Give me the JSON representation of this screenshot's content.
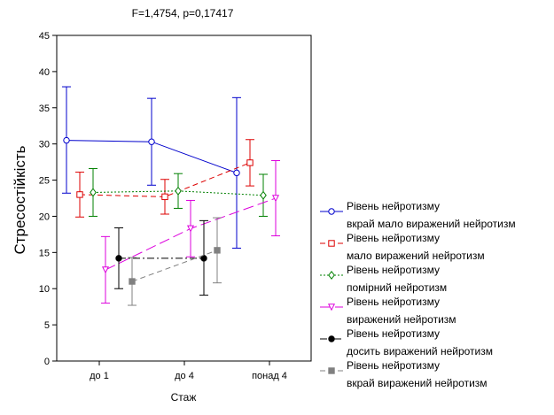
{
  "chart_data": {
    "type": "line",
    "title": "F=1,4754, p=0,17417",
    "xlabel": "Стаж",
    "ylabel": "Стресостійкість",
    "ylim": [
      0,
      45
    ],
    "yticks": [
      0,
      5,
      10,
      15,
      20,
      25,
      30,
      35,
      40,
      45
    ],
    "categories": [
      "до 1",
      "до 4",
      "понад 4"
    ],
    "grid": false,
    "legend_position": "right",
    "series": [
      {
        "name_line1": "Рівень нейротизму",
        "name_line2": "вкрай мало виражений нейротизм",
        "color": "#0000cc",
        "line_style": "solid",
        "marker": "circle-open",
        "values": [
          30.5,
          30.3,
          26.0
        ],
        "lower": [
          23.2,
          24.3,
          15.6
        ],
        "upper": [
          37.9,
          36.3,
          36.4
        ]
      },
      {
        "name_line1": "Рівень нейротизму",
        "name_line2": "мало виражений нейротизм",
        "color": "#dd0000",
        "line_style": "dashed",
        "marker": "square-open",
        "values": [
          23.0,
          22.7,
          27.4
        ],
        "lower": [
          19.9,
          20.3,
          24.2
        ],
        "upper": [
          26.1,
          25.1,
          30.6
        ]
      },
      {
        "name_line1": "Рівень нейротизму",
        "name_line2": "помірний нейротизм",
        "color": "#008000",
        "line_style": "dotted",
        "marker": "diamond-open",
        "values": [
          23.3,
          23.5,
          22.9
        ],
        "lower": [
          20.0,
          21.1,
          20.0
        ],
        "upper": [
          26.6,
          25.9,
          25.8
        ]
      },
      {
        "name_line1": "Рівень нейротизму",
        "name_line2": "виражений нейротизм",
        "color": "#dd00dd",
        "line_style": "longdash",
        "marker": "triangle-open",
        "values": [
          12.6,
          18.3,
          22.5
        ],
        "lower": [
          8.0,
          14.4,
          17.3
        ],
        "upper": [
          17.2,
          22.2,
          27.7
        ]
      },
      {
        "name_line1": "Рівень нейротизму",
        "name_line2": "досить виражений нейротизм",
        "color": "#000000",
        "line_style": "dashdot",
        "marker": "circle-filled",
        "values": [
          14.2,
          14.2,
          null
        ],
        "lower": [
          10.0,
          9.1,
          null
        ],
        "upper": [
          18.4,
          19.4,
          null
        ]
      },
      {
        "name_line1": "Рівень нейротизму",
        "name_line2": "вкрай виражений нейротизм",
        "color": "#808080",
        "line_style": "dashed",
        "marker": "square-filled",
        "values": [
          11.0,
          15.3,
          null
        ],
        "lower": [
          7.7,
          10.8,
          null
        ],
        "upper": [
          14.3,
          19.8,
          null
        ]
      }
    ]
  }
}
